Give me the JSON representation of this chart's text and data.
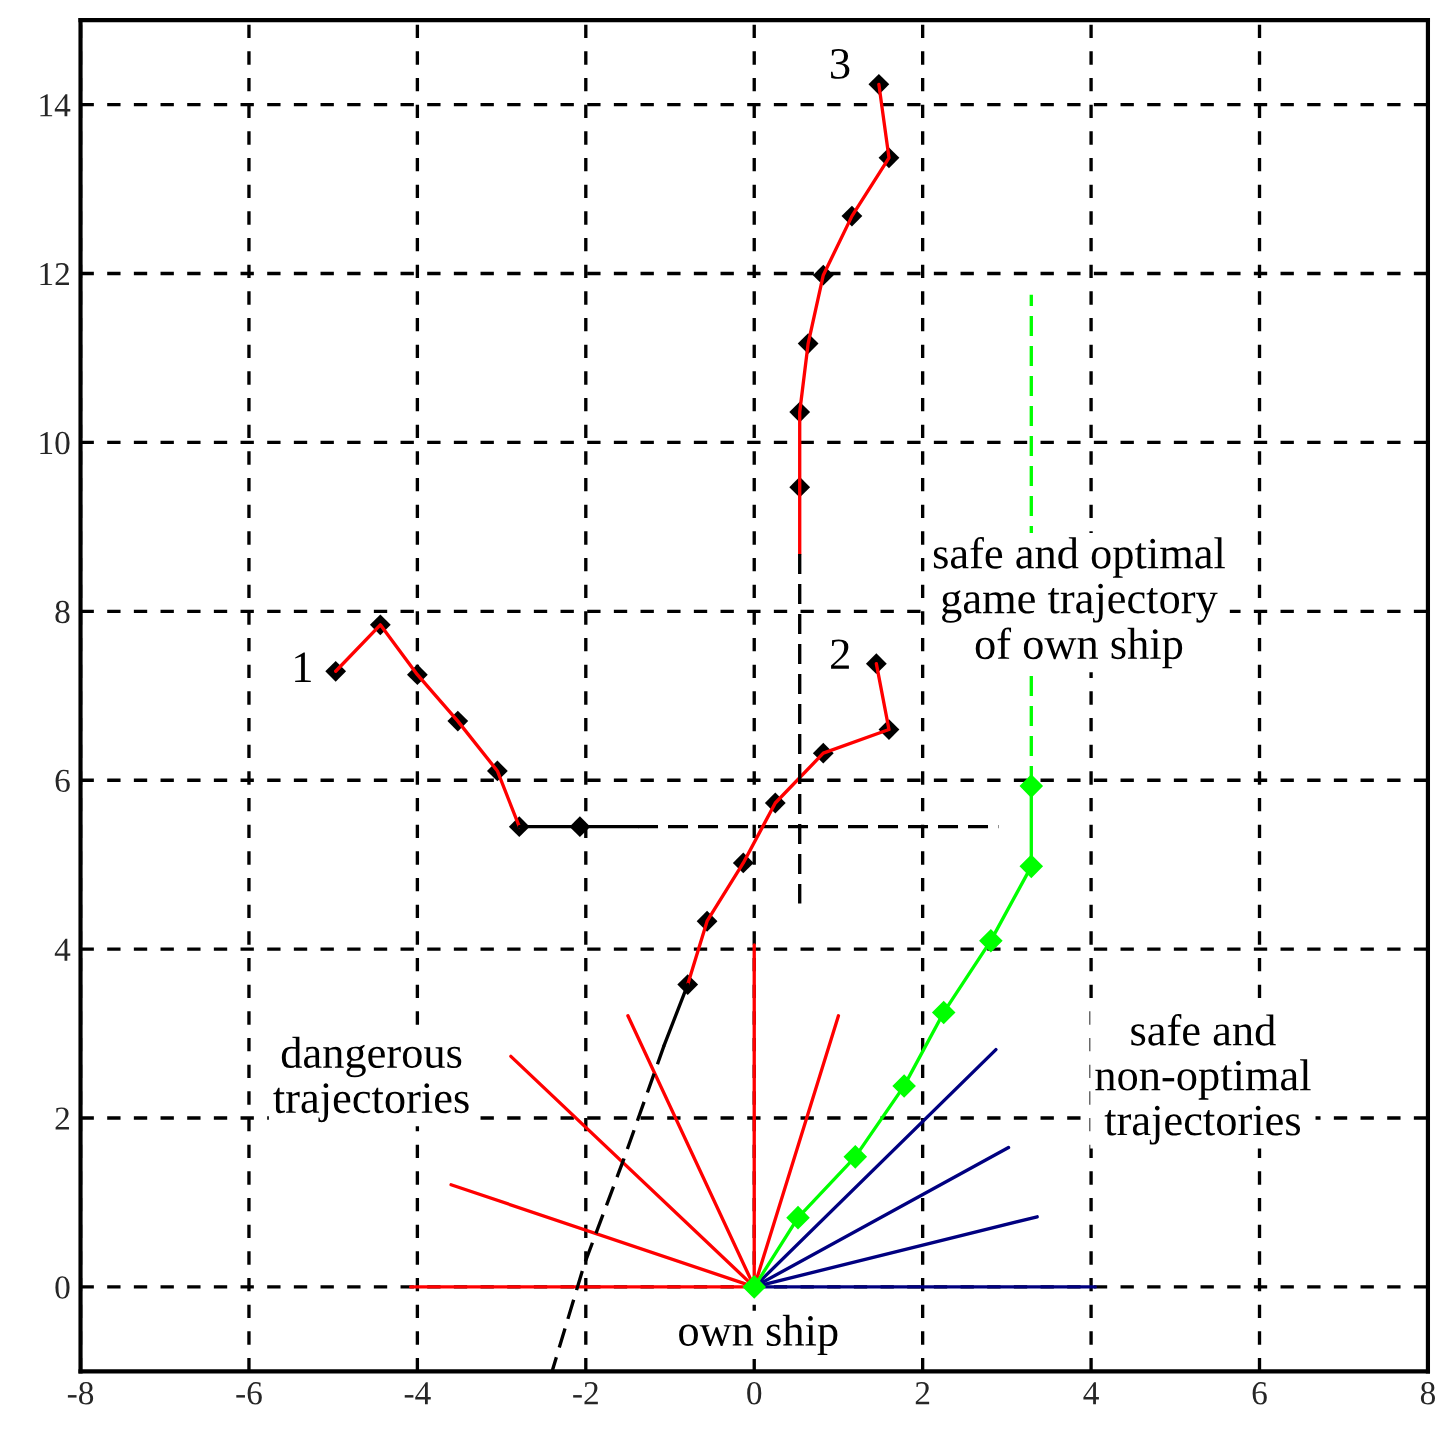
{
  "chart_data": {
    "type": "line",
    "xlim": [
      -8,
      8
    ],
    "ylim": [
      -1,
      15
    ],
    "xticks": [
      -8,
      -6,
      -4,
      -2,
      0,
      2,
      4,
      6,
      8
    ],
    "yticks": [
      0,
      2,
      4,
      6,
      8,
      10,
      12,
      14
    ],
    "grid": true,
    "series": [
      {
        "color": "#ff0000",
        "x": [
          0,
          -4.08
        ],
        "values": [
          0,
          0
        ]
      },
      {
        "color": "#ff0000",
        "x": [
          0,
          -3.6
        ],
        "values": [
          0,
          1.21
        ]
      },
      {
        "color": "#ff0000",
        "x": [
          0,
          -2.89
        ],
        "values": [
          0,
          2.73
        ]
      },
      {
        "color": "#ff0000",
        "x": [
          0,
          -1.5
        ],
        "values": [
          0,
          3.21
        ]
      },
      {
        "color": "#ff0000",
        "x": [
          0,
          0
        ],
        "values": [
          0,
          4.05
        ]
      },
      {
        "color": "#ff0000",
        "x": [
          0,
          1.0
        ],
        "values": [
          0,
          3.21
        ]
      },
      {
        "color": "#000080",
        "x": [
          0,
          2.87
        ],
        "values": [
          0,
          2.81
        ]
      },
      {
        "color": "#000080",
        "x": [
          0,
          3.02
        ],
        "values": [
          0,
          1.65
        ]
      },
      {
        "color": "#000080",
        "x": [
          0,
          3.36
        ],
        "values": [
          0,
          0.83
        ]
      },
      {
        "color": "#000080",
        "x": [
          0,
          4.05
        ],
        "values": [
          0,
          0
        ]
      },
      {
        "color": "#00ff00",
        "x": [
          0,
          0.52,
          1.2,
          1.78,
          2.25,
          2.81,
          3.29,
          3.29
        ],
        "values": [
          0,
          0.82,
          1.54,
          2.38,
          3.25,
          4.1,
          4.98,
          5.93
        ],
        "marker": "diamond"
      },
      {
        "color": "#00ff00",
        "x": [
          3.29,
          3.29
        ],
        "values": [
          5.93,
          11.75
        ],
        "line_style": "dashed"
      },
      {
        "color": "#ff0000",
        "x": [
          -4.97,
          -4.44,
          -4.0,
          -3.52,
          -3.05,
          -2.79
        ],
        "values": [
          7.29,
          7.84,
          7.25,
          6.7,
          6.11,
          5.45
        ]
      },
      {
        "color": "#000000",
        "x": [
          -2.79,
          -2.07,
          -1.38
        ],
        "values": [
          5.45,
          5.45,
          5.45
        ]
      },
      {
        "color": "#000000",
        "x": [
          -1.38,
          2.9
        ],
        "values": [
          5.45,
          5.45
        ],
        "line_style": "dashed"
      },
      {
        "type": "scatter",
        "color": "#000000",
        "x": [
          -4.97,
          -4.44,
          -4.0,
          -3.52,
          -3.05,
          -2.79,
          -2.07
        ],
        "values": [
          7.29,
          7.84,
          7.25,
          6.7,
          6.11,
          5.45,
          5.45
        ],
        "marker": "diamond"
      },
      {
        "color": "#ff0000",
        "x": [
          1.45,
          1.6,
          0.82,
          0.25,
          -0.13,
          -0.56,
          -0.79
        ],
        "values": [
          7.38,
          6.6,
          6.32,
          5.73,
          5.02,
          4.33,
          3.58
        ]
      },
      {
        "color": "#000000",
        "x": [
          -0.79,
          -1.07
        ],
        "values": [
          3.58,
          2.86
        ]
      },
      {
        "color": "#000000",
        "x": [
          -1.07,
          -1.55,
          -2.02,
          -2.4
        ],
        "values": [
          2.86,
          1.51,
          0.26,
          -1.0
        ],
        "line_style": "dashed"
      },
      {
        "type": "scatter",
        "color": "#000000",
        "x": [
          1.45,
          1.6,
          0.82,
          0.25,
          -0.13,
          -0.56,
          -0.79
        ],
        "values": [
          7.38,
          6.6,
          6.32,
          5.73,
          5.02,
          4.33,
          3.58
        ],
        "marker": "diamond"
      },
      {
        "color": "#ff0000",
        "x": [
          1.48,
          1.6,
          1.16,
          0.82,
          0.64,
          0.54,
          0.54,
          0.54
        ],
        "values": [
          14.24,
          13.37,
          12.68,
          11.98,
          11.17,
          10.36,
          9.47,
          8.68
        ]
      },
      {
        "color": "#000000",
        "x": [
          0.54,
          0.54
        ],
        "values": [
          8.68,
          4.54
        ],
        "line_style": "dashed"
      },
      {
        "type": "scatter",
        "color": "#000000",
        "x": [
          1.48,
          1.6,
          1.16,
          0.82,
          0.64,
          0.54,
          0.54
        ],
        "values": [
          14.24,
          13.37,
          12.68,
          11.98,
          11.17,
          10.36,
          9.47
        ],
        "marker": "diamond"
      }
    ],
    "annotations": [
      {
        "text": "1",
        "x": -4.97,
        "y": 7.29
      },
      {
        "text": "2",
        "x": 1.45,
        "y": 7.38
      },
      {
        "text": "3",
        "x": 1.48,
        "y": 14.24
      },
      "safe and optimal\ngame trajectory\nof own ship",
      "dangerous\ntrajectories",
      "safe and\nnon-optimal\ntrajectories",
      "own ship"
    ]
  }
}
